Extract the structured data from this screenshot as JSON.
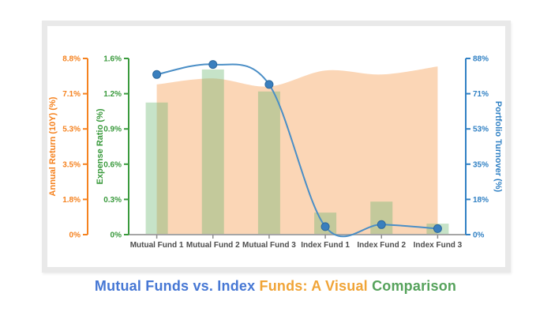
{
  "chart_data": {
    "type": "combo-bar-area-line",
    "categories": [
      "Mutual Fund 1",
      "Mutual Fund 2",
      "Mutual Fund 3",
      "Index Fund 1",
      "Index Fund 2",
      "Index Fund 3"
    ],
    "series": [
      {
        "name": "Expense Ratio (%)",
        "type": "bar",
        "axis": "left_inner",
        "fill": "rgba(106,181,110,0.38)",
        "values": [
          1.2,
          1.5,
          1.3,
          0.2,
          0.3,
          0.1
        ]
      },
      {
        "name": "Annual Return (10Y) (%)",
        "type": "area",
        "axis": "left_outer",
        "fill": "rgba(246,165,94,0.45)",
        "values": [
          7.5,
          7.8,
          7.4,
          8.2,
          8.0,
          8.4
        ]
      },
      {
        "name": "Portfolio Turnover (%)",
        "type": "line",
        "axis": "right",
        "stroke": "#4a8ec6",
        "point_fill": "#3a7fbe",
        "point_stroke": "#2d689c",
        "values": [
          80,
          85,
          75,
          4,
          5,
          3
        ]
      }
    ],
    "axes": {
      "left_outer": {
        "title": "Annual Return (10Y) (%)",
        "color": "#f5821f",
        "max": 8.8,
        "tick_labels": [
          "0%",
          "1.8%",
          "3.5%",
          "5.3%",
          "7.1%",
          "8.8%"
        ]
      },
      "left_inner": {
        "title": "Expense Ratio (%)",
        "color": "#3a9a3d",
        "max": 1.6,
        "tick_labels": [
          "0%",
          "0.3%",
          "0.6%",
          "0.9%",
          "1.2%",
          "1.6%"
        ]
      },
      "right": {
        "title": "Portfolio Turnover (%)",
        "color": "#3181c4",
        "max": 88,
        "tick_labels": [
          "0%",
          "18%",
          "35%",
          "53%",
          "71%",
          "88%"
        ]
      }
    },
    "x_axis": {
      "label_color": "#4d4d4d",
      "baseline_color": "#a6a6a6"
    },
    "grid": false,
    "legend": "none"
  },
  "title": {
    "segments": [
      {
        "text": "Mutual Funds vs. Index ",
        "color": "#4677d4"
      },
      {
        "text": "Funds: A Visual ",
        "color": "#f0a437"
      },
      {
        "text": "Comparison",
        "color": "#55a25b"
      }
    ]
  }
}
